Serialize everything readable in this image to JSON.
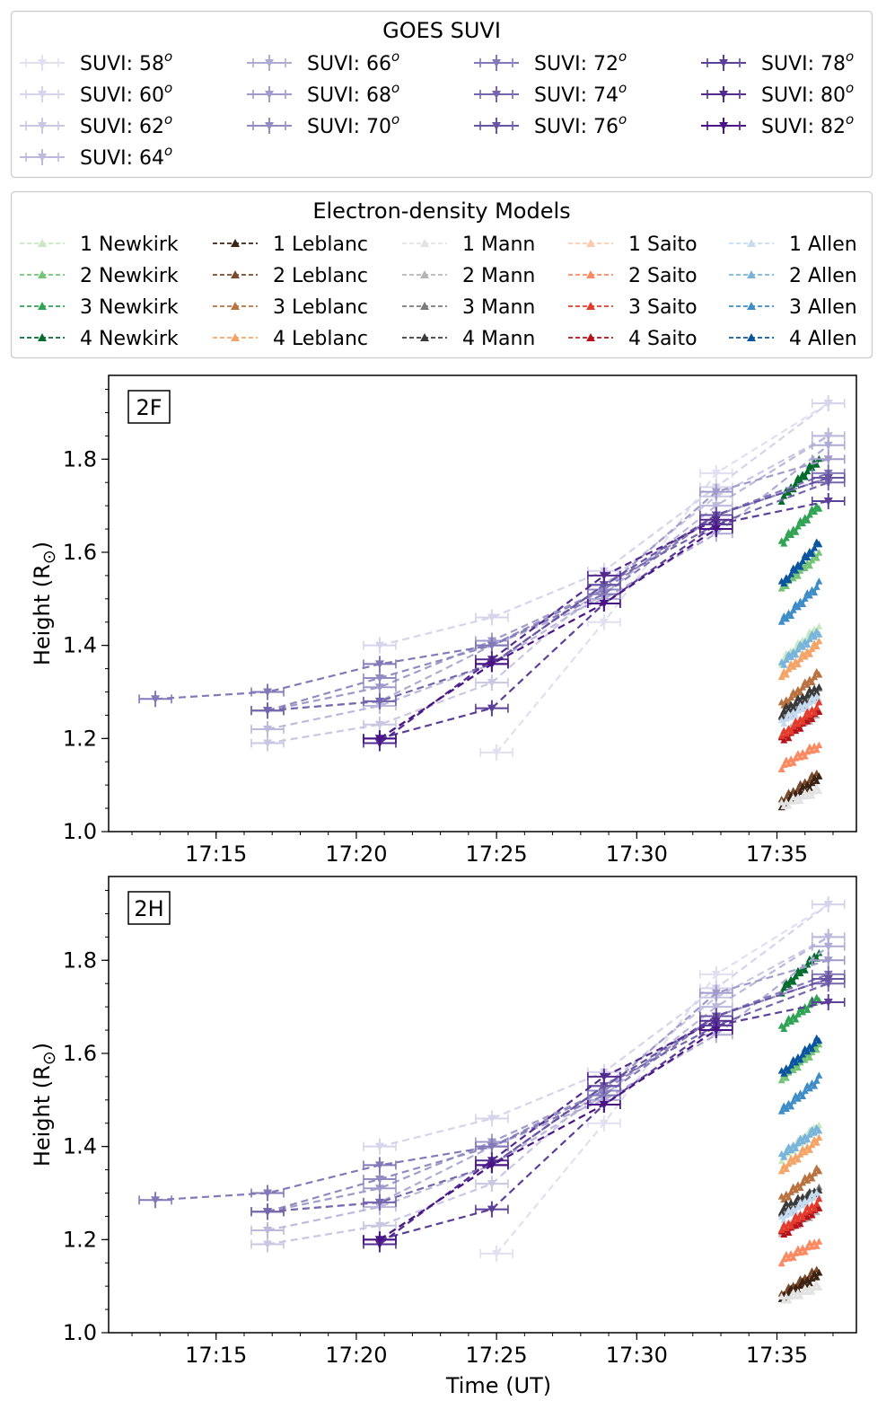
{
  "legend_suvi": {
    "title": "GOES SUVI",
    "entries": [
      "SUVI: 58",
      "SUVI: 60",
      "SUVI: 62",
      "SUVI: 64",
      "SUVI: 66",
      "SUVI: 68",
      "SUVI: 70",
      "SUVI: 72",
      "SUVI: 74",
      "SUVI: 76",
      "SUVI: 78",
      "SUVI: 80",
      "SUVI: 82"
    ],
    "superscript": "o"
  },
  "legend_models": {
    "title": "Electron-density Models",
    "columns": [
      {
        "model": "Newkirk",
        "labels": [
          "1 Newkirk",
          "2 Newkirk",
          "3 Newkirk",
          "4 Newkirk"
        ],
        "colors": [
          "#c7e9c0",
          "#74c476",
          "#31a354",
          "#006d2c"
        ]
      },
      {
        "model": "Leblanc",
        "labels": [
          "1 Leblanc",
          "2 Leblanc",
          "3 Leblanc",
          "4 Leblanc"
        ],
        "colors": [
          "#3b2314",
          "#7a4a2a",
          "#b87340",
          "#f4a466"
        ]
      },
      {
        "model": "Mann",
        "labels": [
          "1 Mann",
          "2 Mann",
          "3 Mann",
          "4 Mann"
        ],
        "colors": [
          "#e3e3e3",
          "#b5b5b5",
          "#7a7a7a",
          "#3a3a3a"
        ]
      },
      {
        "model": "Saito",
        "labels": [
          "1 Saito",
          "2 Saito",
          "3 Saito",
          "4 Saito"
        ],
        "colors": [
          "#fdc9ad",
          "#fb8a62",
          "#e53b2d",
          "#b5121b"
        ]
      },
      {
        "model": "Allen",
        "labels": [
          "1 Allen",
          "2 Allen",
          "3 Allen",
          "4 Allen"
        ],
        "colors": [
          "#c6dbef",
          "#79b4dc",
          "#3f8dc7",
          "#0b559f"
        ]
      }
    ]
  },
  "suvi_colors": [
    "#e1dff0",
    "#d6d4ea",
    "#cac7e3",
    "#bcb9dc",
    "#aeabd3",
    "#a09bca",
    "#918bc1",
    "#8379b8",
    "#7566ad",
    "#6854a3",
    "#5c3f98",
    "#532b8f",
    "#4a1486"
  ],
  "chart_data": [
    {
      "type": "line",
      "panel_label": "2F",
      "xlabel": "",
      "ylabel": "Height (R",
      "ylabel_sub": "⊙",
      "ylabel_close": ")",
      "xlim": [
        "17:11:10",
        "17:37:50"
      ],
      "ylim": [
        1.0,
        1.98
      ],
      "xticks": [
        "17:15",
        "17:20",
        "17:25",
        "17:30",
        "17:35"
      ],
      "yticks": [
        1.0,
        1.2,
        1.4,
        1.6,
        1.8
      ],
      "suvi_series": [
        {
          "angle": 58,
          "points": [
            [
              "17:25:00",
              1.17
            ],
            [
              "17:28:50",
              1.45
            ],
            [
              "17:32:50",
              1.77
            ],
            [
              "17:36:50",
              1.92
            ]
          ]
        },
        {
          "angle": 60,
          "points": [
            [
              "17:20:50",
              1.4
            ],
            [
              "17:24:50",
              1.46
            ],
            [
              "17:28:50",
              1.56
            ],
            [
              "17:32:50",
              1.74
            ],
            [
              "17:36:50",
              1.92
            ]
          ]
        },
        {
          "angle": 62,
          "points": [
            [
              "17:16:50",
              1.19
            ],
            [
              "17:20:50",
              1.23
            ],
            [
              "17:24:50",
              1.32
            ],
            [
              "17:28:50",
              1.53
            ],
            [
              "17:32:50",
              1.72
            ],
            [
              "17:36:50",
              1.85
            ]
          ]
        },
        {
          "angle": 64,
          "points": [
            [
              "17:16:50",
              1.22
            ],
            [
              "17:20:50",
              1.27
            ],
            [
              "17:24:50",
              1.36
            ],
            [
              "17:28:50",
              1.51
            ],
            [
              "17:32:50",
              1.7
            ],
            [
              "17:36:50",
              1.85
            ]
          ]
        },
        {
          "angle": 66,
          "points": [
            [
              "17:16:50",
              1.26
            ],
            [
              "17:20:50",
              1.28
            ],
            [
              "17:24:50",
              1.4
            ],
            [
              "17:28:50",
              1.5
            ],
            [
              "17:32:50",
              1.64
            ],
            [
              "17:36:50",
              1.83
            ]
          ]
        },
        {
          "angle": 68,
          "points": [
            [
              "17:16:50",
              1.26
            ],
            [
              "17:20:50",
              1.31
            ],
            [
              "17:24:50",
              1.41
            ],
            [
              "17:28:50",
              1.52
            ],
            [
              "17:32:50",
              1.73
            ],
            [
              "17:36:50",
              1.8
            ]
          ]
        },
        {
          "angle": 70,
          "points": [
            [
              "17:16:50",
              1.26
            ],
            [
              "17:20:50",
              1.33
            ],
            [
              "17:24:50",
              1.4
            ],
            [
              "17:28:50",
              1.52
            ],
            [
              "17:32:50",
              1.68
            ],
            [
              "17:36:50",
              1.76
            ]
          ]
        },
        {
          "angle": 72,
          "points": [
            [
              "17:12:50",
              1.285
            ],
            [
              "17:16:50",
              1.3
            ],
            [
              "17:20:50",
              1.36
            ],
            [
              "17:24:50",
              1.4
            ],
            [
              "17:28:50",
              1.51
            ],
            [
              "17:32:50",
              1.68
            ],
            [
              "17:36:50",
              1.77
            ]
          ]
        },
        {
          "angle": 74,
          "points": [
            [
              "17:16:50",
              1.26
            ],
            [
              "17:20:50",
              1.28
            ],
            [
              "17:24:50",
              1.36
            ],
            [
              "17:28:50",
              1.53
            ],
            [
              "17:32:50",
              1.66
            ],
            [
              "17:36:50",
              1.75
            ]
          ]
        },
        {
          "angle": 76,
          "points": [
            [
              "17:20:50",
              1.2
            ],
            [
              "17:24:50",
              1.36
            ],
            [
              "17:28:50",
              1.53
            ],
            [
              "17:32:50",
              1.68
            ],
            [
              "17:36:50",
              1.76
            ]
          ]
        },
        {
          "angle": 78,
          "points": [
            [
              "17:20:50",
              1.2
            ],
            [
              "17:24:50",
              1.265
            ],
            [
              "17:28:50",
              1.49
            ],
            [
              "17:32:50",
              1.66
            ],
            [
              "17:36:50",
              1.71
            ]
          ]
        },
        {
          "angle": 80,
          "points": [
            [
              "17:20:50",
              1.19
            ],
            [
              "17:24:50",
              1.37
            ],
            [
              "17:28:50",
              1.55
            ],
            [
              "17:32:50",
              1.67
            ]
          ]
        },
        {
          "angle": 82,
          "points": [
            [
              "17:20:50",
              1.2
            ],
            [
              "17:24:50",
              1.36
            ],
            [
              "17:28:50",
              1.49
            ],
            [
              "17:32:50",
              1.65
            ]
          ]
        }
      ],
      "model_series": [
        {
          "name": "4 Newkirk",
          "start": 1.715,
          "end": 1.8
        },
        {
          "name": "3 Newkirk",
          "start": 1.62,
          "end": 1.7
        },
        {
          "name": "2 Newkirk",
          "start": 1.525,
          "end": 1.595
        },
        {
          "name": "4 Allen",
          "start": 1.53,
          "end": 1.62
        },
        {
          "name": "3 Allen",
          "start": 1.45,
          "end": 1.53
        },
        {
          "name": "1 Newkirk",
          "start": 1.365,
          "end": 1.44
        },
        {
          "name": "2 Allen",
          "start": 1.36,
          "end": 1.43
        },
        {
          "name": "4 Leblanc",
          "start": 1.335,
          "end": 1.405
        },
        {
          "name": "3 Leblanc",
          "start": 1.27,
          "end": 1.34
        },
        {
          "name": "3 Mann",
          "start": 1.245,
          "end": 1.3
        },
        {
          "name": "4 Mann",
          "start": 1.255,
          "end": 1.31
        },
        {
          "name": "1 Allen",
          "start": 1.235,
          "end": 1.29
        },
        {
          "name": "2 Mann",
          "start": 1.205,
          "end": 1.255
        },
        {
          "name": "4 Saito",
          "start": 1.195,
          "end": 1.26
        },
        {
          "name": "3 Saito",
          "start": 1.205,
          "end": 1.27
        },
        {
          "name": "2 Saito",
          "start": 1.14,
          "end": 1.185
        },
        {
          "name": "2 Leblanc",
          "start": 1.065,
          "end": 1.125
        },
        {
          "name": "1 Leblanc",
          "start": 1.055,
          "end": 1.115
        },
        {
          "name": "1 Mann",
          "start": 1.055,
          "end": 1.09
        }
      ],
      "model_time_range": [
        "17:35:10",
        "17:36:30"
      ]
    },
    {
      "type": "line",
      "panel_label": "2H",
      "xlabel": "Time (UT)",
      "ylabel": "Height (R",
      "ylabel_sub": "⊙",
      "ylabel_close": ")",
      "xlim": [
        "17:11:10",
        "17:37:50"
      ],
      "ylim": [
        1.0,
        1.98
      ],
      "xticks": [
        "17:15",
        "17:20",
        "17:25",
        "17:30",
        "17:35"
      ],
      "yticks": [
        1.0,
        1.2,
        1.4,
        1.6,
        1.8
      ],
      "suvi_series": [
        {
          "angle": 58,
          "points": [
            [
              "17:25:00",
              1.17
            ],
            [
              "17:28:50",
              1.45
            ],
            [
              "17:32:50",
              1.77
            ],
            [
              "17:36:50",
              1.92
            ]
          ]
        },
        {
          "angle": 60,
          "points": [
            [
              "17:20:50",
              1.4
            ],
            [
              "17:24:50",
              1.46
            ],
            [
              "17:28:50",
              1.56
            ],
            [
              "17:32:50",
              1.74
            ],
            [
              "17:36:50",
              1.92
            ]
          ]
        },
        {
          "angle": 62,
          "points": [
            [
              "17:16:50",
              1.19
            ],
            [
              "17:20:50",
              1.23
            ],
            [
              "17:24:50",
              1.32
            ],
            [
              "17:28:50",
              1.53
            ],
            [
              "17:32:50",
              1.72
            ],
            [
              "17:36:50",
              1.85
            ]
          ]
        },
        {
          "angle": 64,
          "points": [
            [
              "17:16:50",
              1.22
            ],
            [
              "17:20:50",
              1.27
            ],
            [
              "17:24:50",
              1.36
            ],
            [
              "17:28:50",
              1.51
            ],
            [
              "17:32:50",
              1.7
            ],
            [
              "17:36:50",
              1.85
            ]
          ]
        },
        {
          "angle": 66,
          "points": [
            [
              "17:16:50",
              1.26
            ],
            [
              "17:20:50",
              1.28
            ],
            [
              "17:24:50",
              1.4
            ],
            [
              "17:28:50",
              1.5
            ],
            [
              "17:32:50",
              1.64
            ],
            [
              "17:36:50",
              1.83
            ]
          ]
        },
        {
          "angle": 68,
          "points": [
            [
              "17:16:50",
              1.26
            ],
            [
              "17:20:50",
              1.31
            ],
            [
              "17:24:50",
              1.41
            ],
            [
              "17:28:50",
              1.52
            ],
            [
              "17:32:50",
              1.73
            ],
            [
              "17:36:50",
              1.8
            ]
          ]
        },
        {
          "angle": 70,
          "points": [
            [
              "17:16:50",
              1.26
            ],
            [
              "17:20:50",
              1.33
            ],
            [
              "17:24:50",
              1.4
            ],
            [
              "17:28:50",
              1.52
            ],
            [
              "17:32:50",
              1.68
            ],
            [
              "17:36:50",
              1.76
            ]
          ]
        },
        {
          "angle": 72,
          "points": [
            [
              "17:12:50",
              1.285
            ],
            [
              "17:16:50",
              1.3
            ],
            [
              "17:20:50",
              1.36
            ],
            [
              "17:24:50",
              1.4
            ],
            [
              "17:28:50",
              1.51
            ],
            [
              "17:32:50",
              1.68
            ],
            [
              "17:36:50",
              1.77
            ]
          ]
        },
        {
          "angle": 74,
          "points": [
            [
              "17:16:50",
              1.26
            ],
            [
              "17:20:50",
              1.28
            ],
            [
              "17:24:50",
              1.36
            ],
            [
              "17:28:50",
              1.53
            ],
            [
              "17:32:50",
              1.66
            ],
            [
              "17:36:50",
              1.75
            ]
          ]
        },
        {
          "angle": 76,
          "points": [
            [
              "17:20:50",
              1.2
            ],
            [
              "17:24:50",
              1.36
            ],
            [
              "17:28:50",
              1.53
            ],
            [
              "17:32:50",
              1.68
            ],
            [
              "17:36:50",
              1.76
            ]
          ]
        },
        {
          "angle": 78,
          "points": [
            [
              "17:20:50",
              1.2
            ],
            [
              "17:24:50",
              1.265
            ],
            [
              "17:28:50",
              1.49
            ],
            [
              "17:32:50",
              1.66
            ],
            [
              "17:36:50",
              1.71
            ]
          ]
        },
        {
          "angle": 80,
          "points": [
            [
              "17:20:50",
              1.19
            ],
            [
              "17:24:50",
              1.37
            ],
            [
              "17:28:50",
              1.55
            ],
            [
              "17:32:50",
              1.67
            ]
          ]
        },
        {
          "angle": 82,
          "points": [
            [
              "17:20:50",
              1.2
            ],
            [
              "17:24:50",
              1.36
            ],
            [
              "17:28:50",
              1.49
            ],
            [
              "17:32:50",
              1.65
            ]
          ]
        }
      ],
      "model_series": [
        {
          "name": "4 Newkirk",
          "start": 1.735,
          "end": 1.815
        },
        {
          "name": "3 Newkirk",
          "start": 1.655,
          "end": 1.72
        },
        {
          "name": "2 Newkirk",
          "start": 1.545,
          "end": 1.615
        },
        {
          "name": "4 Allen",
          "start": 1.555,
          "end": 1.63
        },
        {
          "name": "3 Allen",
          "start": 1.475,
          "end": 1.545
        },
        {
          "name": "1 Newkirk",
          "start": 1.375,
          "end": 1.445
        },
        {
          "name": "2 Allen",
          "start": 1.38,
          "end": 1.44
        },
        {
          "name": "4 Leblanc",
          "start": 1.35,
          "end": 1.415
        },
        {
          "name": "3 Leblanc",
          "start": 1.285,
          "end": 1.35
        },
        {
          "name": "3 Mann",
          "start": 1.255,
          "end": 1.305
        },
        {
          "name": "4 Mann",
          "start": 1.265,
          "end": 1.305
        },
        {
          "name": "1 Allen",
          "start": 1.245,
          "end": 1.3
        },
        {
          "name": "2 Mann",
          "start": 1.215,
          "end": 1.265
        },
        {
          "name": "4 Saito",
          "start": 1.21,
          "end": 1.27
        },
        {
          "name": "3 Saito",
          "start": 1.22,
          "end": 1.28
        },
        {
          "name": "2 Saito",
          "start": 1.155,
          "end": 1.195
        },
        {
          "name": "2 Leblanc",
          "start": 1.08,
          "end": 1.135
        },
        {
          "name": "1 Leblanc",
          "start": 1.075,
          "end": 1.125
        },
        {
          "name": "1 Mann",
          "start": 1.07,
          "end": 1.1
        }
      ],
      "model_time_range": [
        "17:35:10",
        "17:36:30"
      ]
    }
  ]
}
